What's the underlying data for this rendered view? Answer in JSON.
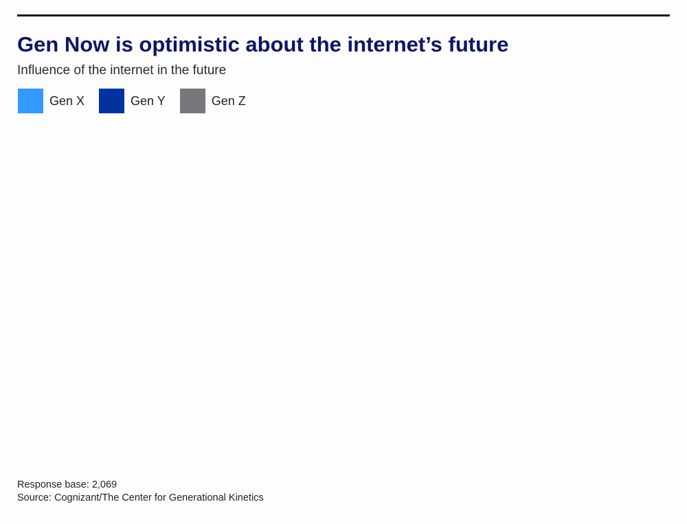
{
  "chart_data": {
    "type": "bar",
    "title": "Gen Now is optimistic about the internet’s future",
    "subtitle": "Influence of the internet in the future",
    "legend_position": "top-left",
    "categories": [],
    "series": [
      {
        "name": "Gen X",
        "color": "#3399ff",
        "values": []
      },
      {
        "name": "Gen Y",
        "color": "#0033a0",
        "values": []
      },
      {
        "name": "Gen Z",
        "color": "#76787c",
        "values": []
      }
    ],
    "notes": [
      "Response base: 2,069",
      "Source: Cognizant/The Center for Generational Kinetics"
    ]
  },
  "colors": {
    "title": "#0d1566",
    "rule": "#1a1a1a",
    "background": "#fdfdfd"
  }
}
